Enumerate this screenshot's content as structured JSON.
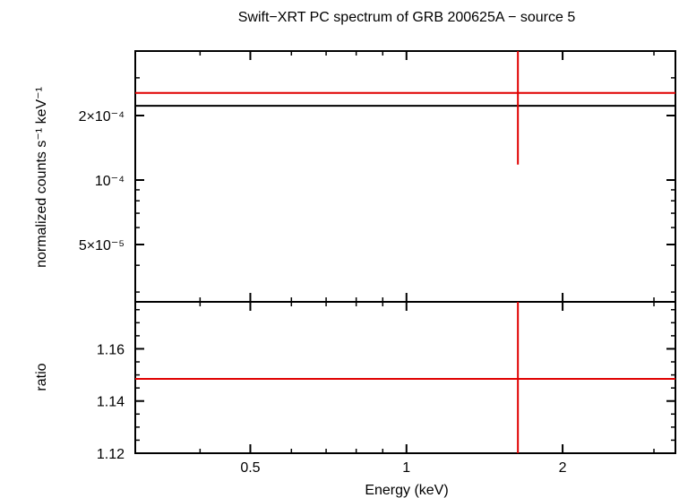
{
  "chart_data": {
    "type": "scatter",
    "title": "Swift−XRT PC spectrum of GRB 200625A − source 5",
    "xlabel": "Energy (keV)",
    "x_scale": "log",
    "xlim": [
      0.3,
      3.3
    ],
    "x_ticks": [
      {
        "value": 0.5,
        "label": "0.5"
      },
      {
        "value": 1,
        "label": "1"
      },
      {
        "value": 2,
        "label": "2"
      }
    ],
    "panels": [
      {
        "id": "spectrum",
        "ylabel": "normalized counts s⁻¹ keV⁻¹",
        "y_scale": "log",
        "ylim": [
          2.7e-05,
          0.0004
        ],
        "y_ticks": [
          {
            "value": 0.0002,
            "label": "2×10⁻⁴"
          },
          {
            "value": 0.0001,
            "label": "10⁻⁴"
          },
          {
            "value": 5e-05,
            "label": "5×10⁻⁵"
          }
        ],
        "data_points": [
          {
            "x": 1.64,
            "x_low": 0.3,
            "x_high": 3.3,
            "y": 0.000255,
            "y_low": 0.000118,
            "y_high": 0.0004,
            "color": "#e00000"
          }
        ],
        "model": [
          {
            "x_start": 0.3,
            "x_end": 3.3,
            "y": 0.000222,
            "color": "#000000"
          }
        ]
      },
      {
        "id": "ratio",
        "ylabel": "ratio",
        "y_scale": "linear",
        "ylim": [
          1.12,
          1.178
        ],
        "y_ticks": [
          {
            "value": 1.12,
            "label": "1.12"
          },
          {
            "value": 1.14,
            "label": "1.14"
          },
          {
            "value": 1.16,
            "label": "1.16"
          }
        ],
        "data_points": [
          {
            "x": 1.64,
            "x_low": 0.3,
            "x_high": 3.3,
            "y": 1.1485,
            "y_low": 1.12,
            "y_high": 1.178,
            "color": "#e00000"
          }
        ]
      }
    ]
  }
}
